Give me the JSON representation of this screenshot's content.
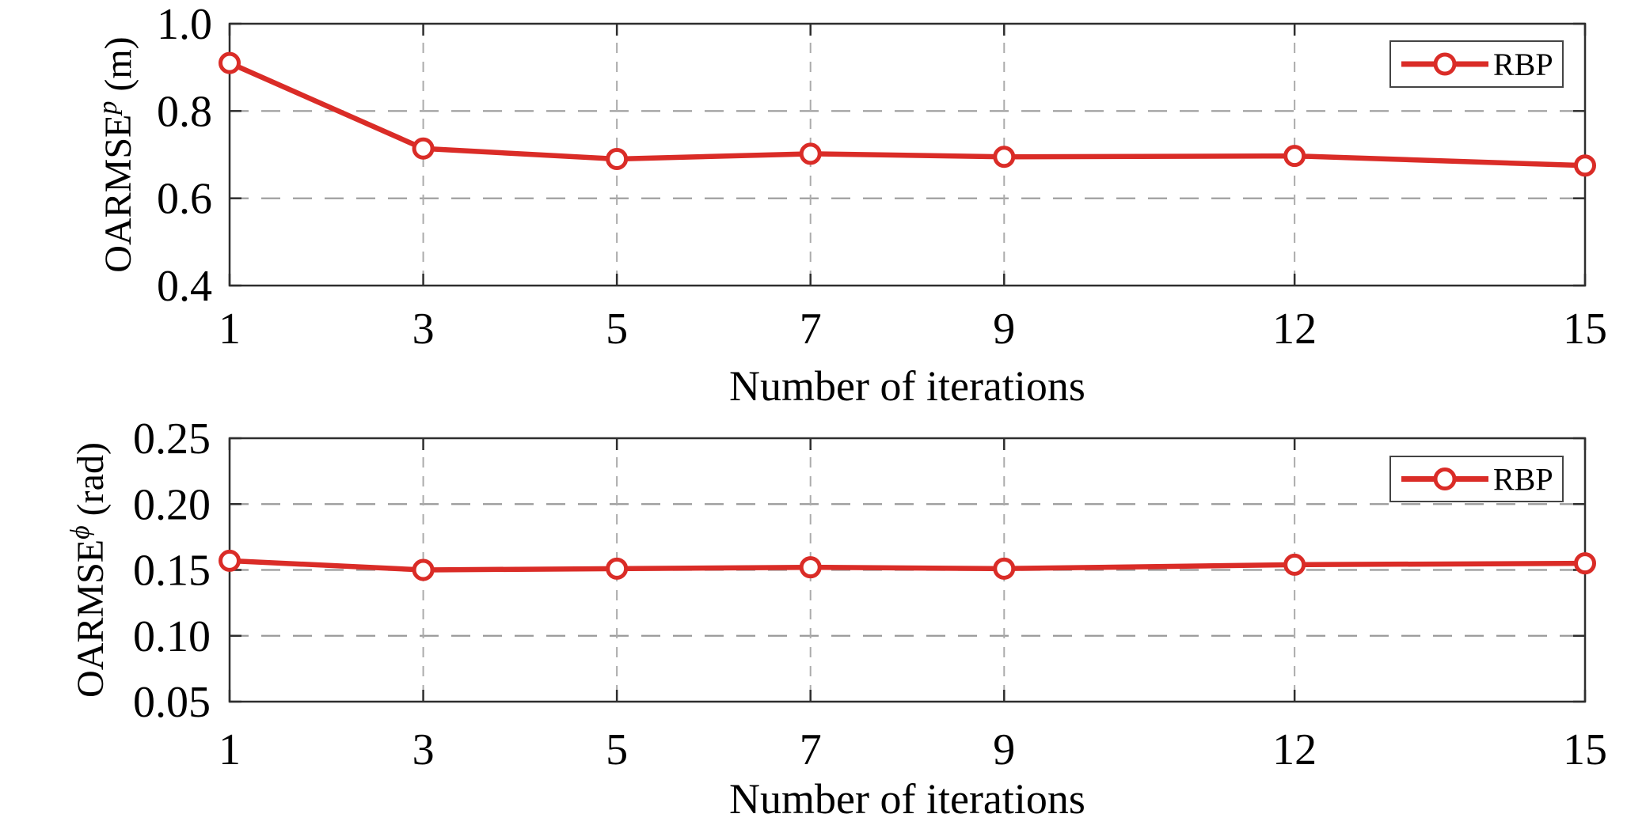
{
  "figure": {
    "background": "#ffffff",
    "accent_red": "#da2c27",
    "border_color": "#2e2e2e",
    "h_grid_color": "#9a9a9a",
    "v_grid_color": "#ababab",
    "text_color": "#000000",
    "legend_border_color": "#444444"
  },
  "chart_data": [
    {
      "type": "line",
      "title": "",
      "xlabel": "Number of iterations",
      "ylabel": {
        "base": "OARMSE",
        "sup": "p",
        "unit": " (m)"
      },
      "x": [
        1,
        3,
        5,
        7,
        9,
        12,
        15
      ],
      "xlim": [
        1,
        15
      ],
      "ylim": [
        0.4,
        1.0
      ],
      "xticks": [
        1,
        3,
        5,
        7,
        9,
        12,
        15
      ],
      "xtick_labels": [
        "1",
        "3",
        "5",
        "7",
        "9",
        "12",
        "15"
      ],
      "yticks": [
        1.0,
        0.8,
        0.6,
        0.4
      ],
      "ytick_labels": [
        "1.0",
        "0.8",
        "0.6",
        "0.4"
      ],
      "grid": "dashed",
      "legend": {
        "label": "RBP",
        "position": "top-right"
      },
      "series": [
        {
          "name": "RBP",
          "color": "#da2c27",
          "marker": "open-circle",
          "values": [
            0.91,
            0.714,
            0.69,
            0.702,
            0.695,
            0.697,
            0.675
          ]
        }
      ]
    },
    {
      "type": "line",
      "title": "",
      "xlabel": "Number of iterations",
      "ylabel": {
        "base": "OARMSE",
        "sup": "ϕ",
        "unit": " (rad)"
      },
      "x": [
        1,
        3,
        5,
        7,
        9,
        12,
        15
      ],
      "xlim": [
        1,
        15
      ],
      "ylim": [
        0.05,
        0.25
      ],
      "xticks": [
        1,
        3,
        5,
        7,
        9,
        12,
        15
      ],
      "xtick_labels": [
        "1",
        "3",
        "5",
        "7",
        "9",
        "12",
        "15"
      ],
      "yticks": [
        0.25,
        0.2,
        0.15,
        0.1,
        0.05
      ],
      "ytick_labels": [
        "0.25",
        "0.20",
        "0.15",
        "0.10",
        "0.05"
      ],
      "grid": "dashed",
      "legend": {
        "label": "RBP",
        "position": "top-right"
      },
      "series": [
        {
          "name": "RBP",
          "color": "#da2c27",
          "marker": "open-circle",
          "values": [
            0.157,
            0.15,
            0.151,
            0.152,
            0.151,
            0.154,
            0.155
          ]
        }
      ]
    }
  ]
}
